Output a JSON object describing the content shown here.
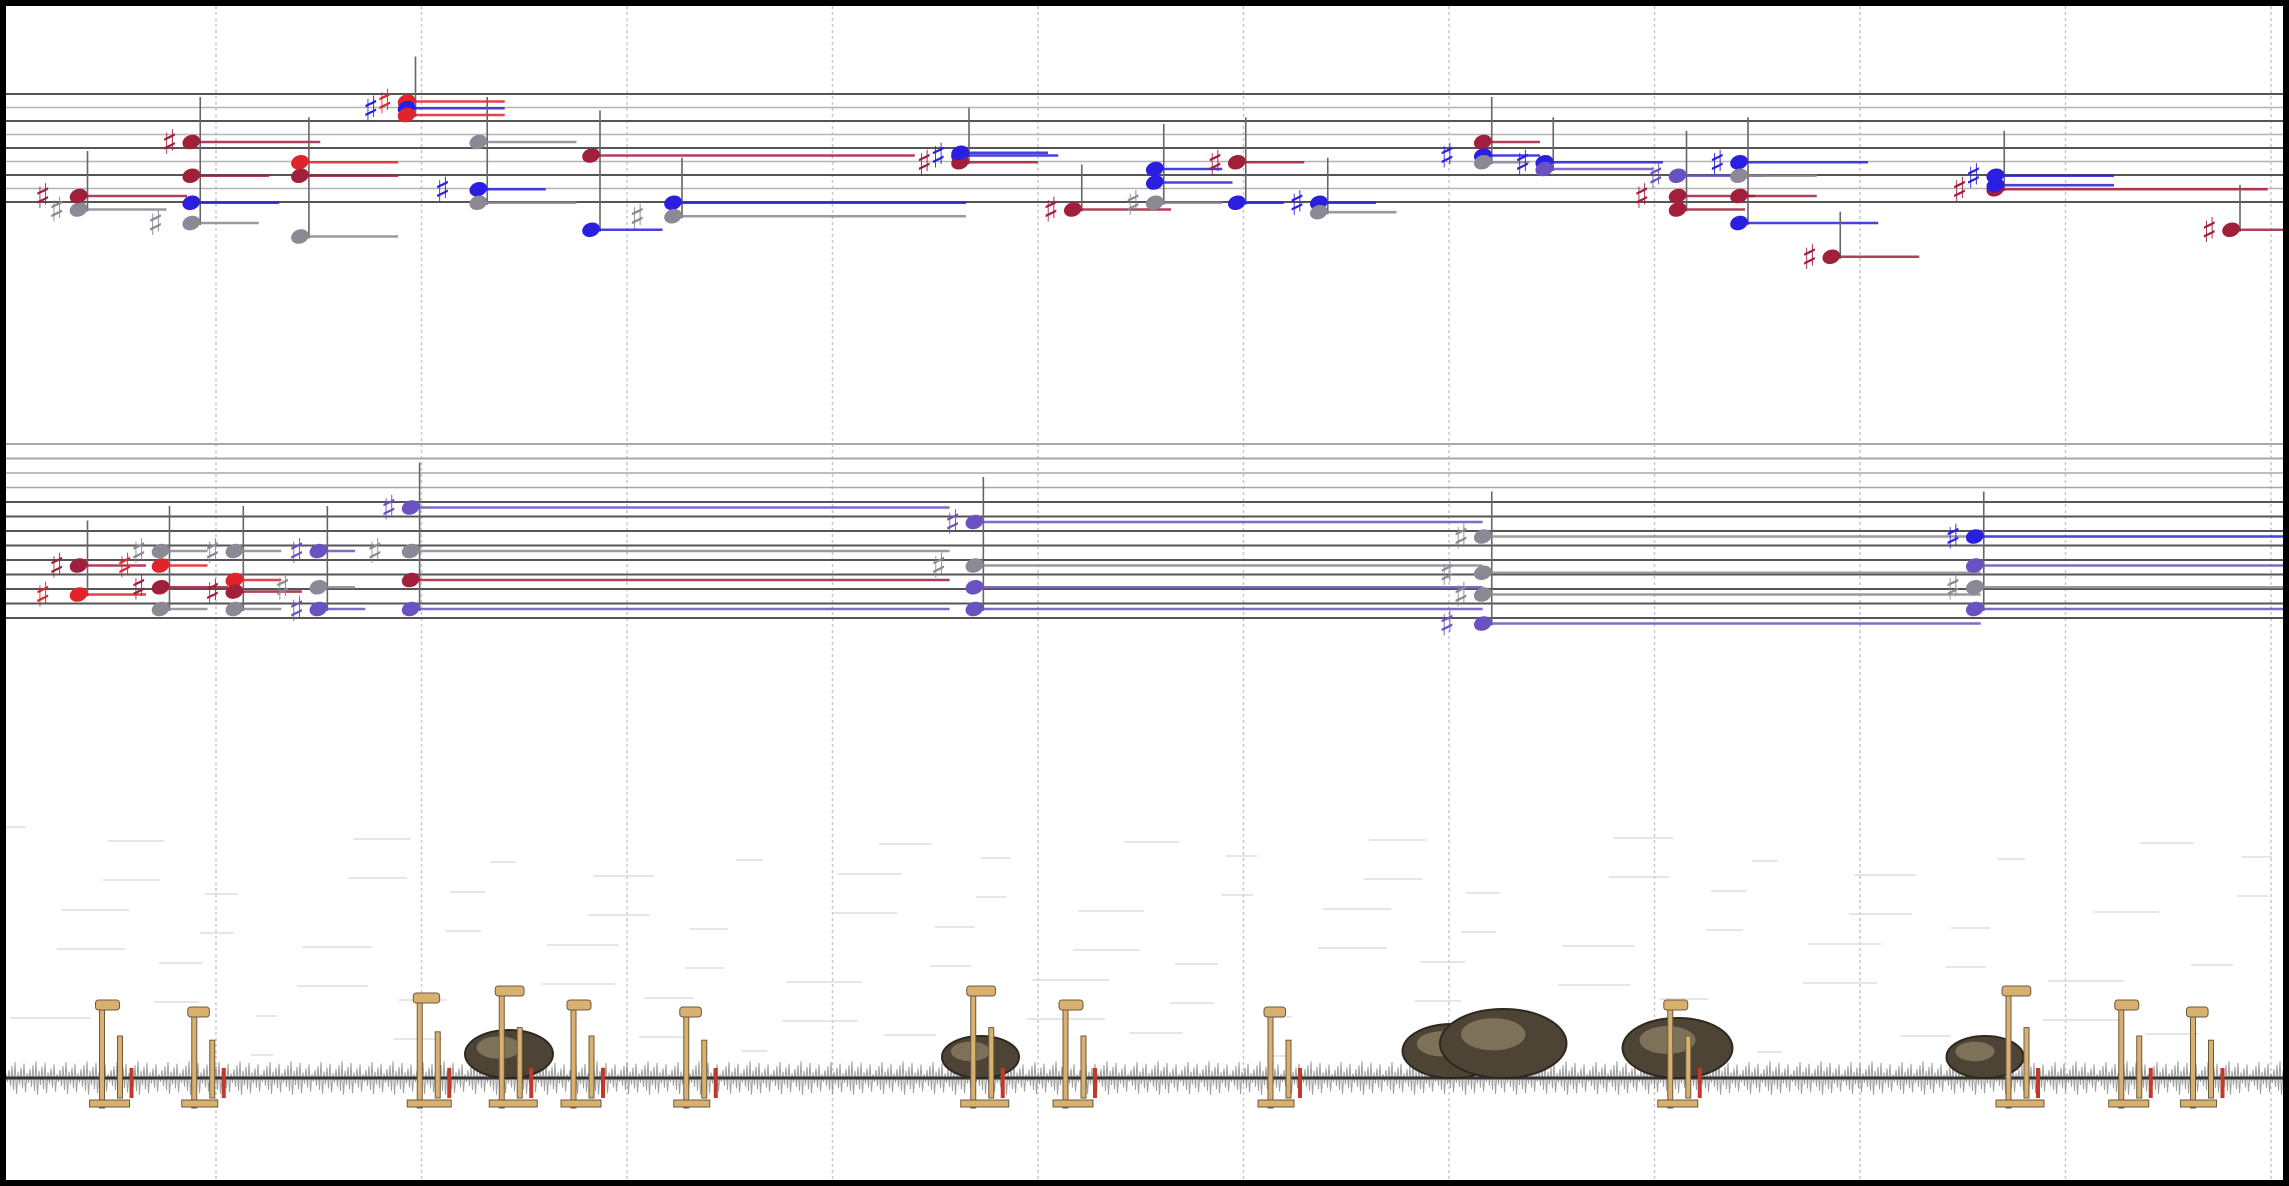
{
  "colors": {
    "background": "#ffffff",
    "border": "#000000",
    "staff_line": "#555555",
    "ledger_line": "#9a9a9a",
    "beat_line": "#c8c8c8",
    "red": "#e0242a",
    "crimson": "#a0203c",
    "blue": "#2a1fe0",
    "violet": "#6a52c2",
    "gray": "#8c8894",
    "waveform": "#777777",
    "instrument_brass": "#d8b070",
    "instrument_dark": "#6a5a40"
  },
  "icons": {
    "sharp": "sharp-accidental-icon",
    "notehead": "notehead-icon",
    "piano_action": "piano-hammer-action-icon",
    "cymbal": "cymbal-icon"
  },
  "score": {
    "upper_staff": {
      "chords": [
        {
          "beat": 0.1,
          "notes": [
            {
              "pos": 5,
              "c": "gray",
              "acc": true,
              "dur": 0.4
            },
            {
              "pos": 4,
              "c": "crimson",
              "acc": true,
              "dur": 0.5
            }
          ]
        },
        {
          "beat": 0.65,
          "notes": [
            {
              "pos": 0,
              "c": "crimson",
              "acc": true,
              "dur": 0.6
            },
            {
              "pos": 2.5,
              "c": "crimson",
              "acc": false,
              "dur": 0.35
            },
            {
              "pos": 4.5,
              "c": "blue",
              "acc": false,
              "dur": 0.4
            },
            {
              "pos": 6,
              "c": "gray",
              "acc": true,
              "dur": 0.3
            }
          ]
        },
        {
          "beat": 1.18,
          "notes": [
            {
              "pos": 1.5,
              "c": "red",
              "acc": false,
              "dur": 0.45
            },
            {
              "pos": 2.5,
              "c": "crimson",
              "acc": false,
              "dur": 0.45
            },
            {
              "pos": 7,
              "c": "gray",
              "acc": false,
              "dur": 0.45
            }
          ]
        },
        {
          "beat": 1.7,
          "notes": [
            {
              "pos": -3,
              "c": "red",
              "acc": true,
              "dur": 0.45
            },
            {
              "pos": -2.5,
              "c": "blue",
              "acc": true,
              "dur": 0.45
            },
            {
              "pos": -2,
              "c": "red",
              "acc": false,
              "dur": 0.45
            }
          ]
        },
        {
          "beat": 2.05,
          "notes": [
            {
              "pos": 0,
              "c": "gray",
              "acc": false,
              "dur": 0.45
            },
            {
              "pos": 3.5,
              "c": "blue",
              "acc": true,
              "dur": 0.3
            },
            {
              "pos": 4.5,
              "c": "gray",
              "acc": false,
              "dur": 0.45
            }
          ]
        },
        {
          "beat": 2.6,
          "notes": [
            {
              "pos": 1,
              "c": "crimson",
              "acc": false,
              "dur": 1.55
            },
            {
              "pos": 6.5,
              "c": "blue",
              "acc": false,
              "dur": 0.32
            }
          ]
        },
        {
          "beat": 3.0,
          "notes": [
            {
              "pos": 4.5,
              "c": "blue",
              "acc": false,
              "dur": 1.4
            },
            {
              "pos": 5.5,
              "c": "gray",
              "acc": true,
              "dur": 1.4
            }
          ]
        },
        {
          "beat": 4.4,
          "notes": [
            {
              "pos": 1,
              "c": "blue",
              "acc": true,
              "dur": 0.45
            },
            {
              "pos": 1.5,
              "c": "crimson",
              "acc": true,
              "dur": 0.35
            },
            {
              "pos": 0.8,
              "c": "blue",
              "acc": false,
              "dur": 0.4
            }
          ]
        },
        {
          "beat": 4.95,
          "notes": [
            {
              "pos": 5,
              "c": "crimson",
              "acc": true,
              "dur": 0.45
            }
          ]
        },
        {
          "beat": 5.35,
          "notes": [
            {
              "pos": 2,
              "c": "blue",
              "acc": false,
              "dur": 0.3
            },
            {
              "pos": 3,
              "c": "blue",
              "acc": false,
              "dur": 0.35
            },
            {
              "pos": 4.5,
              "c": "gray",
              "acc": true,
              "dur": 0.3
            }
          ]
        },
        {
          "beat": 5.75,
          "notes": [
            {
              "pos": 1.5,
              "c": "crimson",
              "acc": true,
              "dur": 0.3
            },
            {
              "pos": 4.5,
              "c": "blue",
              "acc": false,
              "dur": 0.2
            }
          ]
        },
        {
          "beat": 6.15,
          "notes": [
            {
              "pos": 4.5,
              "c": "blue",
              "acc": true,
              "dur": 0.25
            },
            {
              "pos": 5.2,
              "c": "gray",
              "acc": false,
              "dur": 0.35
            }
          ]
        },
        {
          "beat": 6.95,
          "notes": [
            {
              "pos": 0,
              "c": "crimson",
              "acc": false,
              "dur": 0.25
            },
            {
              "pos": 1,
              "c": "blue",
              "acc": true,
              "dur": 0.25
            },
            {
              "pos": 1.5,
              "c": "gray",
              "acc": false,
              "dur": 0.2
            }
          ]
        },
        {
          "beat": 7.25,
          "notes": [
            {
              "pos": 1.5,
              "c": "blue",
              "acc": true,
              "dur": 0.55
            },
            {
              "pos": 2,
              "c": "violet",
              "acc": false,
              "dur": 0.5
            }
          ]
        },
        {
          "beat": 7.9,
          "notes": [
            {
              "pos": 2.5,
              "c": "violet",
              "acc": true,
              "dur": 0.4
            },
            {
              "pos": 4,
              "c": "crimson",
              "acc": true,
              "dur": 0.35
            },
            {
              "pos": 5,
              "c": "crimson",
              "acc": false,
              "dur": 0.3
            }
          ]
        },
        {
          "beat": 8.2,
          "notes": [
            {
              "pos": 1.5,
              "c": "blue",
              "acc": true,
              "dur": 0.6
            },
            {
              "pos": 2.5,
              "c": "gray",
              "acc": false,
              "dur": 0.35
            },
            {
              "pos": 4,
              "c": "crimson",
              "acc": false,
              "dur": 0.35
            },
            {
              "pos": 6,
              "c": "blue",
              "acc": false,
              "dur": 0.65
            }
          ]
        },
        {
          "beat": 8.65,
          "notes": [
            {
              "pos": 8.5,
              "c": "crimson",
              "acc": true,
              "dur": 0.4
            }
          ]
        },
        {
          "beat": 9.45,
          "notes": [
            {
              "pos": 2.5,
              "c": "blue",
              "acc": true,
              "dur": 0.55
            },
            {
              "pos": 3.5,
              "c": "crimson",
              "acc": true,
              "dur": 1.3
            },
            {
              "pos": 3.2,
              "c": "blue",
              "acc": false,
              "dur": 0.55
            }
          ]
        },
        {
          "beat": 10.6,
          "notes": [
            {
              "pos": 6.5,
              "c": "crimson",
              "acc": true,
              "dur": 0.3
            }
          ]
        }
      ]
    },
    "lower_staff": {
      "chords": [
        {
          "beat": 0.1,
          "notes": [
            {
              "pos": 7,
              "c": "crimson",
              "acc": true,
              "dur": 0.3
            },
            {
              "pos": 9,
              "c": "red",
              "acc": true,
              "dur": 0.3
            }
          ]
        },
        {
          "beat": 0.5,
          "notes": [
            {
              "pos": 6,
              "c": "gray",
              "acc": true,
              "dur": 0.2
            },
            {
              "pos": 7,
              "c": "red",
              "acc": true,
              "dur": 0.2
            },
            {
              "pos": 8.5,
              "c": "crimson",
              "acc": true,
              "dur": 0.3
            },
            {
              "pos": 10,
              "c": "gray",
              "acc": false,
              "dur": 0.2
            }
          ]
        },
        {
          "beat": 0.86,
          "notes": [
            {
              "pos": 6,
              "c": "gray",
              "acc": true,
              "dur": 0.2
            },
            {
              "pos": 8,
              "c": "red",
              "acc": false,
              "dur": 0.2
            },
            {
              "pos": 8.8,
              "c": "crimson",
              "acc": true,
              "dur": 0.3
            },
            {
              "pos": 10,
              "c": "gray",
              "acc": false,
              "dur": 0.2
            }
          ]
        },
        {
          "beat": 1.27,
          "notes": [
            {
              "pos": 6,
              "c": "violet",
              "acc": true,
              "dur": 0.15
            },
            {
              "pos": 8.5,
              "c": "gray",
              "acc": true,
              "dur": 0.15
            },
            {
              "pos": 10,
              "c": "violet",
              "acc": true,
              "dur": 0.2
            }
          ]
        },
        {
          "beat": 1.72,
          "notes": [
            {
              "pos": 3,
              "c": "violet",
              "acc": true,
              "dur": 2.6
            },
            {
              "pos": 6,
              "c": "gray",
              "acc": true,
              "dur": 2.6
            },
            {
              "pos": 8,
              "c": "crimson",
              "acc": false,
              "dur": 2.6
            },
            {
              "pos": 10,
              "c": "violet",
              "acc": false,
              "dur": 2.6
            }
          ]
        },
        {
          "beat": 4.47,
          "notes": [
            {
              "pos": 4,
              "c": "violet",
              "acc": true,
              "dur": 2.45
            },
            {
              "pos": 7,
              "c": "gray",
              "acc": true,
              "dur": 2.45
            },
            {
              "pos": 8.5,
              "c": "violet",
              "acc": false,
              "dur": 2.45
            },
            {
              "pos": 10,
              "c": "violet",
              "acc": false,
              "dur": 2.45
            }
          ]
        },
        {
          "beat": 6.95,
          "notes": [
            {
              "pos": 5,
              "c": "gray",
              "acc": true,
              "dur": 2.4
            },
            {
              "pos": 7.5,
              "c": "gray",
              "acc": true,
              "dur": 2.4
            },
            {
              "pos": 9,
              "c": "gray",
              "acc": true,
              "dur": 2.4
            },
            {
              "pos": 11,
              "c": "violet",
              "acc": true,
              "dur": 2.4
            }
          ]
        },
        {
          "beat": 9.35,
          "notes": [
            {
              "pos": 5,
              "c": "blue",
              "acc": true,
              "dur": 1.6
            },
            {
              "pos": 7,
              "c": "violet",
              "acc": false,
              "dur": 1.6
            },
            {
              "pos": 8.5,
              "c": "gray",
              "acc": true,
              "dur": 1.6
            },
            {
              "pos": 10,
              "c": "violet",
              "acc": false,
              "dur": 1.6
            }
          ]
        }
      ]
    },
    "beat_count": 11
  },
  "percussion_events": [
    {
      "beat": 0.3,
      "kind": "piano_action",
      "scale": 1.0
    },
    {
      "beat": 0.75,
      "kind": "piano_action",
      "scale": 0.9
    },
    {
      "beat": 1.85,
      "kind": "piano_action",
      "scale": 1.1
    },
    {
      "beat": 2.2,
      "kind": "cymbal",
      "scale": 0.8
    },
    {
      "beat": 2.25,
      "kind": "piano_action",
      "scale": 1.2
    },
    {
      "beat": 2.6,
      "kind": "piano_action",
      "scale": 1.0
    },
    {
      "beat": 3.15,
      "kind": "piano_action",
      "scale": 0.9
    },
    {
      "beat": 4.5,
      "kind": "cymbal",
      "scale": 0.7
    },
    {
      "beat": 4.55,
      "kind": "piano_action",
      "scale": 1.2
    },
    {
      "beat": 5.0,
      "kind": "piano_action",
      "scale": 1.0
    },
    {
      "beat": 6.0,
      "kind": "piano_action",
      "scale": 0.9
    },
    {
      "beat": 6.8,
      "kind": "cymbal",
      "scale": 0.9
    },
    {
      "beat": 7.05,
      "kind": "cymbal",
      "scale": 1.15
    },
    {
      "beat": 7.9,
      "kind": "cymbal",
      "scale": 1.0
    },
    {
      "beat": 7.95,
      "kind": "piano_action",
      "scale": 1.0
    },
    {
      "beat": 9.4,
      "kind": "cymbal",
      "scale": 0.7
    },
    {
      "beat": 9.6,
      "kind": "piano_action",
      "scale": 1.2
    },
    {
      "beat": 10.15,
      "kind": "piano_action",
      "scale": 1.0
    },
    {
      "beat": 10.5,
      "kind": "piano_action",
      "scale": 0.9
    }
  ]
}
